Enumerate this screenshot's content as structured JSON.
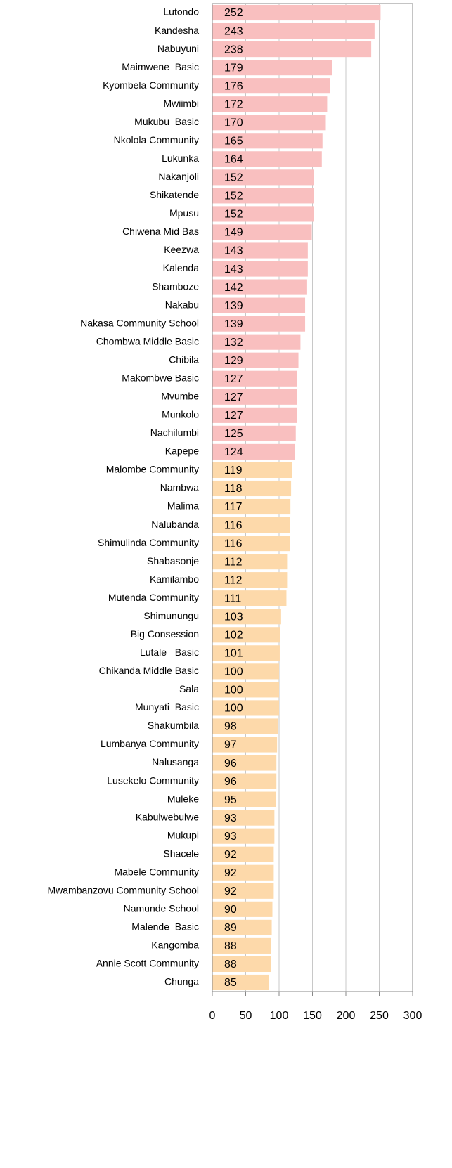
{
  "chart_data": {
    "type": "barh",
    "categories": [
      "Lutondo",
      "Kandesha",
      "Nabuyuni",
      "Maimwene  Basic",
      "Kyombela Community",
      "Mwiimbi",
      "Mukubu  Basic",
      "Nkolola Community",
      "Lukunka",
      "Nakanjoli",
      "Shikatende",
      "Mpusu",
      "Chiwena Mid Bas",
      "Keezwa",
      "Kalenda",
      "Shamboze",
      "Nakabu",
      "Nakasa Community School",
      "Chombwa Middle Basic",
      "Chibila",
      "Makombwe Basic",
      "Mvumbe",
      "Munkolo",
      "Nachilumbi",
      "Kapepe",
      "Malombe Community",
      "Nambwa",
      "Malima",
      "Nalubanda",
      "Shimulinda Community",
      "Shabasonje",
      "Kamilambo",
      "Mutenda Community",
      "Shimunungu",
      "Big Consession",
      "Lutale   Basic",
      "Chikanda Middle Basic",
      "Sala",
      "Munyati  Basic",
      "Shakumbila",
      "Lumbanya Community",
      "Nalusanga",
      "Lusekelo Community",
      "Muleke",
      "Kabulwebulwe",
      "Mukupi",
      "Shacele",
      "Mabele Community",
      "Mwambanzovu Community School",
      "Namunde School",
      "Malende  Basic",
      "Kangomba",
      "Annie Scott Community",
      "Chunga"
    ],
    "values": [
      252,
      243,
      238,
      179,
      176,
      172,
      170,
      165,
      164,
      152,
      152,
      152,
      149,
      143,
      143,
      142,
      139,
      139,
      132,
      129,
      127,
      127,
      127,
      125,
      124,
      119,
      118,
      117,
      116,
      116,
      112,
      112,
      111,
      103,
      102,
      101,
      100,
      100,
      100,
      98,
      97,
      96,
      96,
      95,
      93,
      93,
      92,
      92,
      92,
      90,
      89,
      88,
      88,
      85
    ],
    "colors": [
      "#f9bfbf",
      "#f9bfbf",
      "#f9bfbf",
      "#f9bfbf",
      "#f9bfbf",
      "#f9bfbf",
      "#f9bfbf",
      "#f9bfbf",
      "#f9bfbf",
      "#f9bfbf",
      "#f9bfbf",
      "#f9bfbf",
      "#f9bfbf",
      "#f9bfbf",
      "#f9bfbf",
      "#f9bfbf",
      "#f9bfbf",
      "#f9bfbf",
      "#f9bfbf",
      "#f9bfbf",
      "#f9bfbf",
      "#f9bfbf",
      "#f9bfbf",
      "#f9bfbf",
      "#f9bfbf",
      "#fdd9aa",
      "#fdd9aa",
      "#fdd9aa",
      "#fdd9aa",
      "#fdd9aa",
      "#fdd9aa",
      "#fdd9aa",
      "#fdd9aa",
      "#fdd9aa",
      "#fdd9aa",
      "#fdd9aa",
      "#fdd9aa",
      "#fdd9aa",
      "#fdd9aa",
      "#fdd9aa",
      "#fdd9aa",
      "#fdd9aa",
      "#fdd9aa",
      "#fdd9aa",
      "#fdd9aa",
      "#fdd9aa",
      "#fdd9aa",
      "#fdd9aa",
      "#fdd9aa",
      "#fdd9aa",
      "#fdd9aa",
      "#fdd9aa",
      "#fdd9aa",
      "#fdd9aa"
    ],
    "xlim": [
      0,
      300
    ],
    "xticks": [
      0,
      50,
      100,
      150,
      200,
      250,
      300
    ],
    "grid": true
  }
}
